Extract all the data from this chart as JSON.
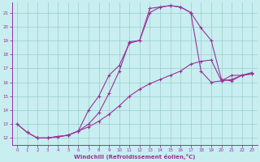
{
  "xlabel": "Windchill (Refroidissement éolien,°C)",
  "bg_color": "#c8eef0",
  "grid_color": "#99cccc",
  "line_color": "#993399",
  "xlim": [
    -0.5,
    23.5
  ],
  "ylim": [
    11.5,
    21.7
  ],
  "yticks": [
    12,
    13,
    14,
    15,
    16,
    17,
    18,
    19,
    20,
    21
  ],
  "xticks": [
    0,
    1,
    2,
    3,
    4,
    5,
    6,
    7,
    8,
    9,
    10,
    11,
    12,
    13,
    14,
    15,
    16,
    17,
    18,
    19,
    20,
    21,
    22,
    23
  ],
  "line1_x": [
    0,
    1,
    2,
    3,
    4,
    5,
    6,
    7,
    8,
    9,
    10,
    11,
    12,
    13,
    14,
    15,
    16,
    17,
    18,
    19,
    20,
    21,
    22,
    23
  ],
  "line1_y": [
    13.0,
    12.4,
    12.0,
    12.0,
    12.1,
    12.2,
    12.5,
    13.0,
    13.8,
    15.2,
    16.8,
    18.9,
    19.0,
    21.3,
    21.4,
    21.5,
    21.4,
    21.0,
    19.9,
    19.0,
    16.2,
    16.1,
    16.5,
    16.6
  ],
  "line2_x": [
    2,
    3,
    4,
    5,
    6,
    7,
    8,
    9,
    10,
    11,
    12,
    13,
    14,
    15,
    16,
    17,
    18,
    19,
    20,
    21,
    22,
    23
  ],
  "line2_y": [
    12.0,
    12.0,
    12.1,
    12.2,
    12.5,
    14.0,
    15.0,
    16.5,
    17.2,
    18.8,
    19.0,
    21.0,
    21.4,
    21.5,
    21.4,
    21.0,
    16.8,
    16.0,
    16.1,
    16.5,
    16.5,
    16.7
  ],
  "line3_x": [
    0,
    1,
    2,
    3,
    4,
    5,
    6,
    7,
    8,
    9,
    10,
    11,
    12,
    13,
    14,
    15,
    16,
    17,
    18,
    19,
    20,
    21,
    22,
    23
  ],
  "line3_y": [
    13.0,
    12.4,
    12.0,
    12.0,
    12.1,
    12.2,
    12.5,
    12.8,
    13.2,
    13.7,
    14.3,
    15.0,
    15.5,
    15.9,
    16.2,
    16.5,
    16.8,
    17.3,
    17.5,
    17.6,
    16.1,
    16.2,
    16.5,
    16.6
  ]
}
